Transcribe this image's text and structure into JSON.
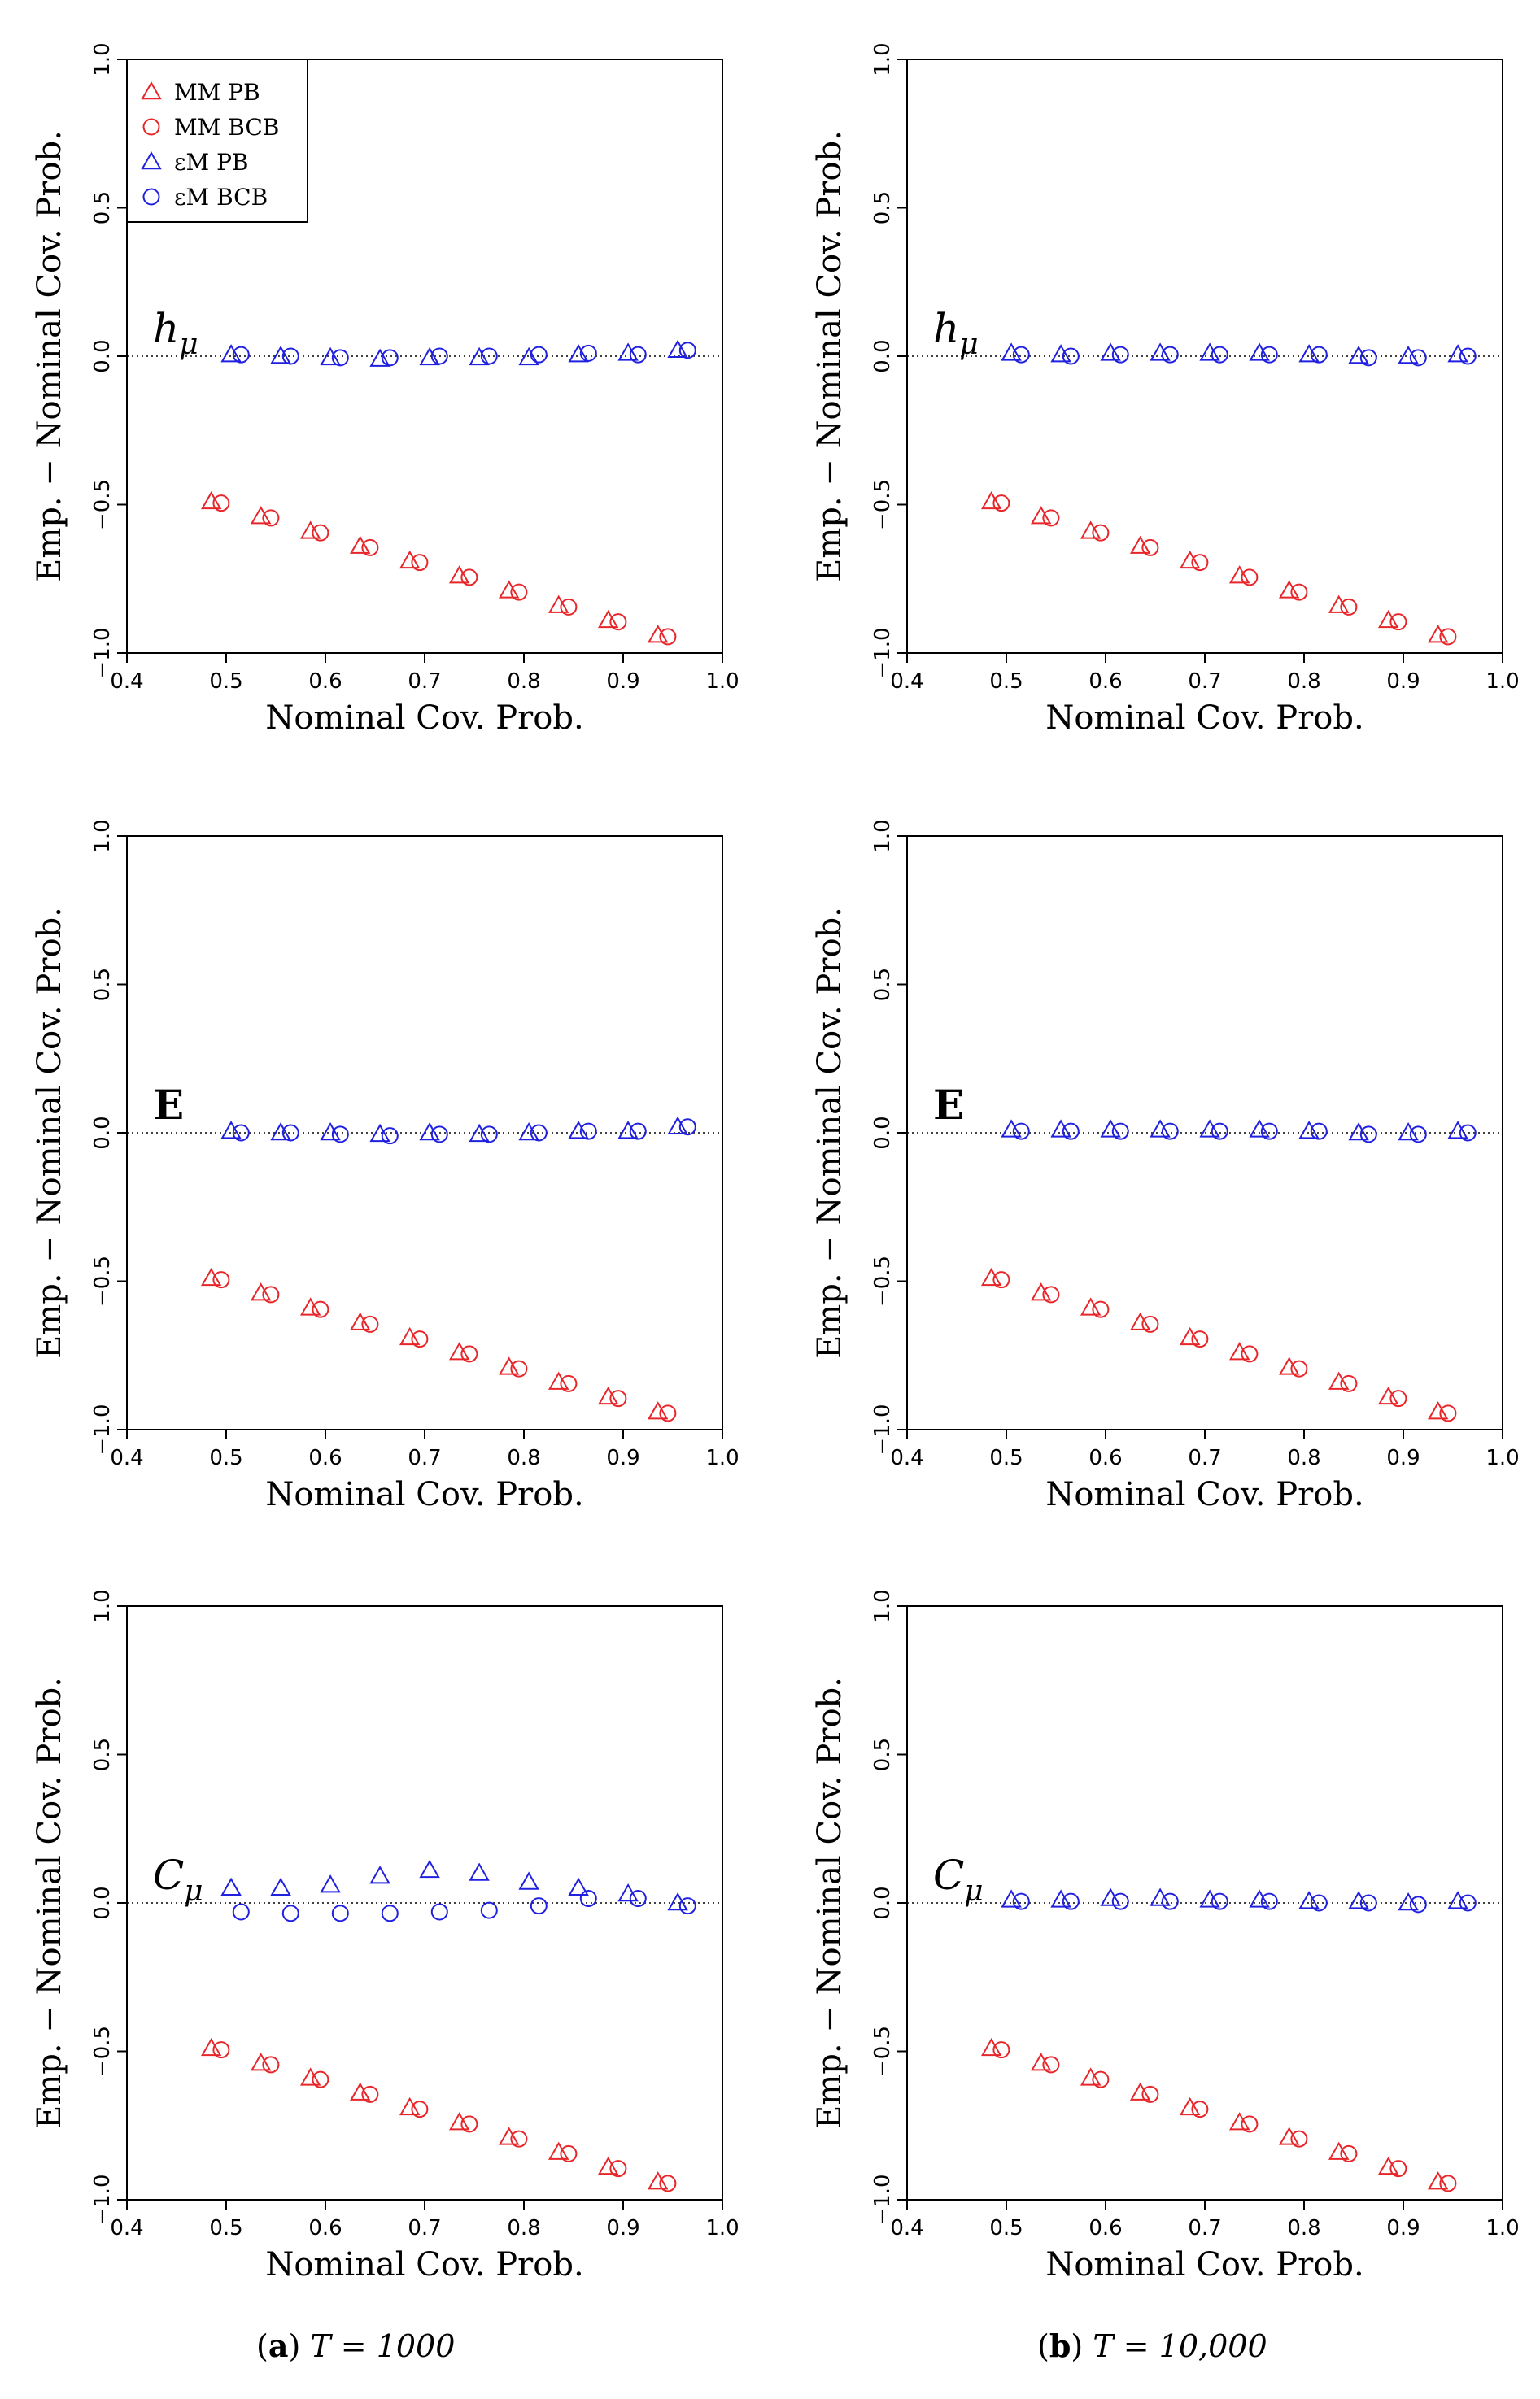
{
  "colors": {
    "mm": "#e8262a",
    "em": "#2020e0",
    "axis": "#000000"
  },
  "legend": [
    {
      "label": "MM PB",
      "marker": "triangle",
      "color": "#e8262a"
    },
    {
      "label": "MM BCB",
      "marker": "circle",
      "color": "#e8262a"
    },
    {
      "label": "εM PB",
      "marker": "triangle",
      "color": "#2020e0"
    },
    {
      "label": "εM BCB",
      "marker": "circle",
      "color": "#2020e0"
    }
  ],
  "captions": {
    "a": {
      "tag": "a",
      "text": "T = 1000"
    },
    "b": {
      "tag": "b",
      "text": "T = 10,000"
    }
  },
  "chart_data": [
    {
      "type": "scatter",
      "panel": "a",
      "label": "hμ",
      "xlabel": "Nominal Cov. Prob.",
      "ylabel": "Emp. − Nominal Cov. Prob.",
      "xlim": [
        0.4,
        1.0
      ],
      "ylim": [
        -1.0,
        1.0
      ],
      "xticks": [
        "0.4",
        "0.5",
        "0.6",
        "0.7",
        "0.8",
        "0.9",
        "1.0"
      ],
      "yticks": [
        "−1.0",
        "−0.5",
        "0.0",
        "0.5",
        "1.0"
      ],
      "reference_line_y": 0.0,
      "legend": true,
      "series": [
        {
          "name": "MM PB",
          "x": [
            0.485,
            0.535,
            0.585,
            0.635,
            0.685,
            0.735,
            0.785,
            0.835,
            0.885,
            0.935
          ],
          "y": [
            -0.49,
            -0.54,
            -0.59,
            -0.64,
            -0.69,
            -0.74,
            -0.79,
            -0.84,
            -0.89,
            -0.94
          ]
        },
        {
          "name": "MM BCB",
          "x": [
            0.495,
            0.545,
            0.595,
            0.645,
            0.695,
            0.745,
            0.795,
            0.845,
            0.895,
            0.945
          ],
          "y": [
            -0.495,
            -0.545,
            -0.595,
            -0.645,
            -0.695,
            -0.745,
            -0.795,
            -0.845,
            -0.895,
            -0.945
          ]
        },
        {
          "name": "εM PB",
          "x": [
            0.505,
            0.555,
            0.605,
            0.655,
            0.705,
            0.755,
            0.805,
            0.855,
            0.905,
            0.955
          ],
          "y": [
            0.005,
            0.0,
            -0.005,
            -0.01,
            -0.005,
            -0.005,
            -0.005,
            0.005,
            0.01,
            0.02
          ]
        },
        {
          "name": "εM BCB",
          "x": [
            0.515,
            0.565,
            0.615,
            0.665,
            0.715,
            0.765,
            0.815,
            0.865,
            0.915,
            0.965
          ],
          "y": [
            0.005,
            0.0,
            -0.005,
            -0.005,
            0.0,
            0.0,
            0.005,
            0.01,
            0.005,
            0.02
          ]
        }
      ]
    },
    {
      "type": "scatter",
      "panel": "b",
      "label": "hμ",
      "xlabel": "Nominal Cov. Prob.",
      "ylabel": "Emp. − Nominal Cov. Prob.",
      "xlim": [
        0.4,
        1.0
      ],
      "ylim": [
        -1.0,
        1.0
      ],
      "xticks": [
        "0.4",
        "0.5",
        "0.6",
        "0.7",
        "0.8",
        "0.9",
        "1.0"
      ],
      "yticks": [
        "−1.0",
        "−0.5",
        "0.0",
        "0.5",
        "1.0"
      ],
      "reference_line_y": 0.0,
      "legend": false,
      "series": [
        {
          "name": "MM PB",
          "x": [
            0.485,
            0.535,
            0.585,
            0.635,
            0.685,
            0.735,
            0.785,
            0.835,
            0.885,
            0.935
          ],
          "y": [
            -0.49,
            -0.54,
            -0.59,
            -0.64,
            -0.69,
            -0.74,
            -0.79,
            -0.84,
            -0.89,
            -0.94
          ]
        },
        {
          "name": "MM BCB",
          "x": [
            0.495,
            0.545,
            0.595,
            0.645,
            0.695,
            0.745,
            0.795,
            0.845,
            0.895,
            0.945
          ],
          "y": [
            -0.495,
            -0.545,
            -0.595,
            -0.645,
            -0.695,
            -0.745,
            -0.795,
            -0.845,
            -0.895,
            -0.945
          ]
        },
        {
          "name": "εM PB",
          "x": [
            0.505,
            0.555,
            0.605,
            0.655,
            0.705,
            0.755,
            0.805,
            0.855,
            0.905,
            0.955
          ],
          "y": [
            0.01,
            0.005,
            0.01,
            0.01,
            0.01,
            0.01,
            0.005,
            0.0,
            0.0,
            0.005
          ]
        },
        {
          "name": "εM BCB",
          "x": [
            0.515,
            0.565,
            0.615,
            0.665,
            0.715,
            0.765,
            0.815,
            0.865,
            0.915,
            0.965
          ],
          "y": [
            0.005,
            0.0,
            0.005,
            0.005,
            0.005,
            0.005,
            0.005,
            -0.005,
            -0.005,
            0.0
          ]
        }
      ]
    },
    {
      "type": "scatter",
      "panel": "a",
      "label": "E",
      "xlabel": "Nominal Cov. Prob.",
      "ylabel": "Emp. − Nominal Cov. Prob.",
      "xlim": [
        0.4,
        1.0
      ],
      "ylim": [
        -1.0,
        1.0
      ],
      "xticks": [
        "0.4",
        "0.5",
        "0.6",
        "0.7",
        "0.8",
        "0.9",
        "1.0"
      ],
      "yticks": [
        "−1.0",
        "−0.5",
        "0.0",
        "0.5",
        "1.0"
      ],
      "reference_line_y": 0.0,
      "legend": false,
      "series": [
        {
          "name": "MM PB",
          "x": [
            0.485,
            0.535,
            0.585,
            0.635,
            0.685,
            0.735,
            0.785,
            0.835,
            0.885,
            0.935
          ],
          "y": [
            -0.49,
            -0.54,
            -0.59,
            -0.64,
            -0.69,
            -0.74,
            -0.79,
            -0.84,
            -0.89,
            -0.94
          ]
        },
        {
          "name": "MM BCB",
          "x": [
            0.495,
            0.545,
            0.595,
            0.645,
            0.695,
            0.745,
            0.795,
            0.845,
            0.895,
            0.945
          ],
          "y": [
            -0.495,
            -0.545,
            -0.595,
            -0.645,
            -0.695,
            -0.745,
            -0.795,
            -0.845,
            -0.895,
            -0.945
          ]
        },
        {
          "name": "εM PB",
          "x": [
            0.505,
            0.555,
            0.605,
            0.655,
            0.705,
            0.755,
            0.805,
            0.855,
            0.905,
            0.955
          ],
          "y": [
            0.005,
            0.0,
            0.0,
            -0.005,
            0.0,
            -0.005,
            0.0,
            0.005,
            0.005,
            0.02
          ]
        },
        {
          "name": "εM BCB",
          "x": [
            0.515,
            0.565,
            0.615,
            0.665,
            0.715,
            0.765,
            0.815,
            0.865,
            0.915,
            0.965
          ],
          "y": [
            0.0,
            0.0,
            -0.005,
            -0.01,
            -0.005,
            -0.005,
            0.0,
            0.005,
            0.005,
            0.02
          ]
        }
      ]
    },
    {
      "type": "scatter",
      "panel": "b",
      "label": "E",
      "xlabel": "Nominal Cov. Prob.",
      "ylabel": "Emp. − Nominal Cov. Prob.",
      "xlim": [
        0.4,
        1.0
      ],
      "ylim": [
        -1.0,
        1.0
      ],
      "xticks": [
        "0.4",
        "0.5",
        "0.6",
        "0.7",
        "0.8",
        "0.9",
        "1.0"
      ],
      "yticks": [
        "−1.0",
        "−0.5",
        "0.0",
        "0.5",
        "1.0"
      ],
      "reference_line_y": 0.0,
      "legend": false,
      "series": [
        {
          "name": "MM PB",
          "x": [
            0.485,
            0.535,
            0.585,
            0.635,
            0.685,
            0.735,
            0.785,
            0.835,
            0.885,
            0.935
          ],
          "y": [
            -0.49,
            -0.54,
            -0.59,
            -0.64,
            -0.69,
            -0.74,
            -0.79,
            -0.84,
            -0.89,
            -0.94
          ]
        },
        {
          "name": "MM BCB",
          "x": [
            0.495,
            0.545,
            0.595,
            0.645,
            0.695,
            0.745,
            0.795,
            0.845,
            0.895,
            0.945
          ],
          "y": [
            -0.495,
            -0.545,
            -0.595,
            -0.645,
            -0.695,
            -0.745,
            -0.795,
            -0.845,
            -0.895,
            -0.945
          ]
        },
        {
          "name": "εM PB",
          "x": [
            0.505,
            0.555,
            0.605,
            0.655,
            0.705,
            0.755,
            0.805,
            0.855,
            0.905,
            0.955
          ],
          "y": [
            0.01,
            0.01,
            0.01,
            0.01,
            0.01,
            0.01,
            0.005,
            0.0,
            0.0,
            0.005
          ]
        },
        {
          "name": "εM BCB",
          "x": [
            0.515,
            0.565,
            0.615,
            0.665,
            0.715,
            0.765,
            0.815,
            0.865,
            0.915,
            0.965
          ],
          "y": [
            0.005,
            0.005,
            0.005,
            0.005,
            0.005,
            0.005,
            0.005,
            -0.005,
            -0.005,
            0.0
          ]
        }
      ]
    },
    {
      "type": "scatter",
      "panel": "a",
      "label": "Cμ",
      "xlabel": "Nominal Cov. Prob.",
      "ylabel": "Emp. − Nominal Cov. Prob.",
      "xlim": [
        0.4,
        1.0
      ],
      "ylim": [
        -1.0,
        1.0
      ],
      "xticks": [
        "0.4",
        "0.5",
        "0.6",
        "0.7",
        "0.8",
        "0.9",
        "1.0"
      ],
      "yticks": [
        "−1.0",
        "−0.5",
        "0.0",
        "0.5",
        "1.0"
      ],
      "reference_line_y": 0.0,
      "legend": false,
      "series": [
        {
          "name": "MM PB",
          "x": [
            0.485,
            0.535,
            0.585,
            0.635,
            0.685,
            0.735,
            0.785,
            0.835,
            0.885,
            0.935
          ],
          "y": [
            -0.49,
            -0.54,
            -0.59,
            -0.64,
            -0.69,
            -0.74,
            -0.79,
            -0.84,
            -0.89,
            -0.94
          ]
        },
        {
          "name": "MM BCB",
          "x": [
            0.495,
            0.545,
            0.595,
            0.645,
            0.695,
            0.745,
            0.795,
            0.845,
            0.895,
            0.945
          ],
          "y": [
            -0.495,
            -0.545,
            -0.595,
            -0.645,
            -0.695,
            -0.745,
            -0.795,
            -0.845,
            -0.895,
            -0.945
          ]
        },
        {
          "name": "εM PB",
          "x": [
            0.505,
            0.555,
            0.605,
            0.655,
            0.705,
            0.755,
            0.805,
            0.855,
            0.905,
            0.955
          ],
          "y": [
            0.05,
            0.05,
            0.06,
            0.09,
            0.11,
            0.1,
            0.07,
            0.05,
            0.03,
            0.0
          ]
        },
        {
          "name": "εM BCB",
          "x": [
            0.515,
            0.565,
            0.615,
            0.665,
            0.715,
            0.765,
            0.815,
            0.865,
            0.915,
            0.965
          ],
          "y": [
            -0.03,
            -0.035,
            -0.035,
            -0.035,
            -0.03,
            -0.025,
            -0.01,
            0.015,
            0.015,
            -0.01
          ]
        }
      ]
    },
    {
      "type": "scatter",
      "panel": "b",
      "label": "Cμ",
      "xlabel": "Nominal Cov. Prob.",
      "ylabel": "Emp. − Nominal Cov. Prob.",
      "xlim": [
        0.4,
        1.0
      ],
      "ylim": [
        -1.0,
        1.0
      ],
      "xticks": [
        "0.4",
        "0.5",
        "0.6",
        "0.7",
        "0.8",
        "0.9",
        "1.0"
      ],
      "yticks": [
        "−1.0",
        "−0.5",
        "0.0",
        "0.5",
        "1.0"
      ],
      "reference_line_y": 0.0,
      "legend": false,
      "series": [
        {
          "name": "MM PB",
          "x": [
            0.485,
            0.535,
            0.585,
            0.635,
            0.685,
            0.735,
            0.785,
            0.835,
            0.885,
            0.935
          ],
          "y": [
            -0.49,
            -0.54,
            -0.59,
            -0.64,
            -0.69,
            -0.74,
            -0.79,
            -0.84,
            -0.89,
            -0.94
          ]
        },
        {
          "name": "MM BCB",
          "x": [
            0.495,
            0.545,
            0.595,
            0.645,
            0.695,
            0.745,
            0.795,
            0.845,
            0.895,
            0.945
          ],
          "y": [
            -0.495,
            -0.545,
            -0.595,
            -0.645,
            -0.695,
            -0.745,
            -0.795,
            -0.845,
            -0.895,
            -0.945
          ]
        },
        {
          "name": "εM PB",
          "x": [
            0.505,
            0.555,
            0.605,
            0.655,
            0.705,
            0.755,
            0.805,
            0.855,
            0.905,
            0.955
          ],
          "y": [
            0.01,
            0.01,
            0.015,
            0.015,
            0.01,
            0.01,
            0.005,
            0.005,
            0.0,
            0.005
          ]
        },
        {
          "name": "εM BCB",
          "x": [
            0.515,
            0.565,
            0.615,
            0.665,
            0.715,
            0.765,
            0.815,
            0.865,
            0.915,
            0.965
          ],
          "y": [
            0.005,
            0.005,
            0.005,
            0.005,
            0.005,
            0.005,
            0.0,
            0.0,
            -0.005,
            0.0
          ]
        }
      ]
    }
  ]
}
